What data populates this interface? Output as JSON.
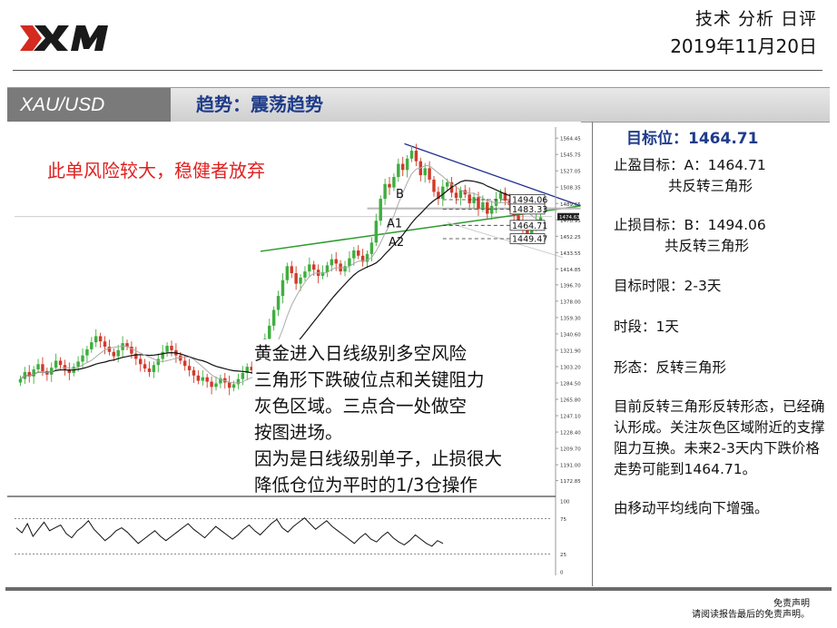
{
  "header": {
    "logo_text": "XM",
    "title": "技术 分析 日评",
    "date": "2019年11月20日"
  },
  "banner": {
    "instrument": "XAU/USD",
    "trend": "趋势：震荡趋势"
  },
  "panel": {
    "target_label": "目标位：",
    "target_value": "1464.71",
    "take_profit_label": "止盈目标：A：1464.71",
    "take_profit_note": "共反转三角形",
    "stop_loss_label": "止损目标：B：1494.06",
    "stop_loss_note": "共反转三角形",
    "timeframe": "目标时限：2-3天",
    "period": "时段：1天",
    "pattern": "形态：反转三角形",
    "commentary": "目前反转三角形反转形态，已经确认形成。关注灰色区域附近的支撑阻力互换。未来2-3天内下跌价格走势可能到1464.71。",
    "ma_note": "由移动平均线向下增强。"
  },
  "footer": {
    "line1": "免责声明",
    "line2": "请阅读报告最后的免责声明。"
  },
  "chart_data": {
    "type": "candlestick",
    "instrument": "XAU/USD",
    "timeframe": "daily",
    "price_axis_ticks": [
      "1564.45",
      "1545.75",
      "1527.05",
      "1508.35",
      "1489.65",
      "1470.95",
      "1452.25",
      "1433.55",
      "1414.85",
      "1396.70",
      "1378.00",
      "1359.30",
      "1340.60",
      "1321.90",
      "1303.20",
      "1284.50",
      "1265.80",
      "1247.10",
      "1228.40",
      "1209.70",
      "1191.00",
      "1172.85"
    ],
    "current_price_label": "1474.63",
    "y_range": [
      1160,
      1575
    ],
    "levels": [
      {
        "label": "1494.06",
        "value": 1494.06,
        "marker": "B"
      },
      {
        "label": "1483.33",
        "value": 1483.33
      },
      {
        "label": "1464.71",
        "value": 1464.71,
        "marker": "A1"
      },
      {
        "label": "1449.47",
        "value": 1449.47,
        "marker": "A2"
      }
    ],
    "markers": [
      "B",
      "A1",
      "A2"
    ],
    "closes": [
      1289,
      1297,
      1292,
      1300,
      1306,
      1298,
      1294,
      1302,
      1310,
      1305,
      1300,
      1296,
      1303,
      1309,
      1316,
      1323,
      1331,
      1338,
      1332,
      1326,
      1320,
      1315,
      1322,
      1330,
      1326,
      1318,
      1312,
      1306,
      1301,
      1297,
      1305,
      1312,
      1320,
      1327,
      1322,
      1316,
      1310,
      1304,
      1299,
      1293,
      1287,
      1291,
      1286,
      1280,
      1284,
      1290,
      1285,
      1279,
      1283,
      1289,
      1296,
      1303,
      1299,
      1308,
      1320,
      1335,
      1350,
      1368,
      1384,
      1402,
      1418,
      1410,
      1398,
      1405,
      1412,
      1420,
      1414,
      1407,
      1411,
      1419,
      1426,
      1421,
      1412,
      1418,
      1427,
      1436,
      1430,
      1423,
      1432,
      1445,
      1470,
      1495,
      1512,
      1508,
      1520,
      1535,
      1528,
      1541,
      1550,
      1538,
      1522,
      1530,
      1517,
      1503,
      1495,
      1509,
      1514,
      1502,
      1496,
      1505,
      1500,
      1490,
      1497,
      1484,
      1491,
      1478,
      1487,
      1495,
      1502,
      1493,
      1488,
      1476,
      1470,
      1461,
      1455,
      1462,
      1470,
      1474
    ],
    "oscillator": {
      "ticks": [
        "100",
        "75",
        "25",
        "0"
      ],
      "levels": [
        75,
        25
      ],
      "values": [
        62,
        55,
        68,
        50,
        60,
        70,
        58,
        62,
        66,
        54,
        48,
        58,
        64,
        72,
        60,
        52,
        44,
        50,
        58,
        62,
        56,
        48,
        40,
        46,
        52,
        58,
        50,
        44,
        50,
        56,
        62,
        68,
        60,
        54,
        48,
        56,
        64,
        58,
        52,
        46,
        52,
        60,
        66,
        58,
        52,
        60,
        68,
        74,
        62,
        56,
        64,
        70,
        76,
        68,
        60,
        66,
        72,
        64,
        58,
        52,
        46,
        40,
        48,
        54,
        46,
        42,
        50,
        56,
        48,
        42,
        38,
        44,
        52,
        46,
        40,
        36,
        44,
        40
      ]
    },
    "annotations": {
      "risk_warning": "此单风险较大，稳健者放弃",
      "lines": [
        "黄金进入日线级别多空风险",
        "三角形下跌破位点和关键阻力",
        "灰色区域。三点合一处做空",
        "按图进场。",
        "因为是日线级别单子，止损很大",
        "降低仓位为平时的1/3仓操作"
      ]
    }
  }
}
